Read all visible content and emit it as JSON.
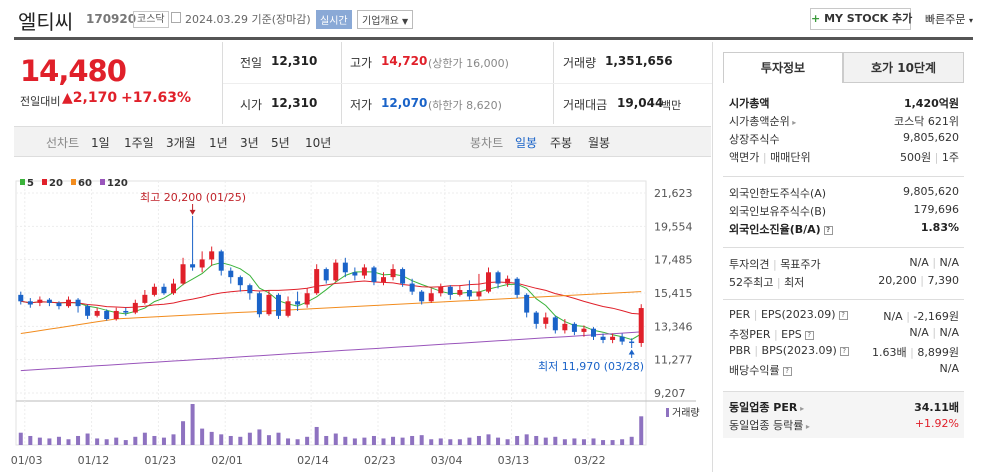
{
  "header": {
    "name": "엘티씨",
    "code": "170920",
    "market": "코스닥",
    "date": "2024.03.29 기준(장마감)",
    "realtime": "실시간",
    "overview": "기업개요",
    "mystock": "MY STOCK 추가",
    "quick": "빠른주문"
  },
  "price": {
    "current": "14,480",
    "prev_label": "전일대비",
    "change": "2,170",
    "rate": "+17.63%"
  },
  "summary": {
    "prev_label": "전일",
    "prev": "12,310",
    "open_label": "시가",
    "open": "12,310",
    "high_label": "고가",
    "high": "14,720",
    "high_limit": "(상한가 16,000)",
    "low_label": "저가",
    "low": "12,070",
    "low_limit": "(하한가 8,620)",
    "volume_label": "거래량",
    "volume": "1,351,656",
    "amount_label": "거래대금",
    "amount": "19,044",
    "amount_unit": "백만"
  },
  "tabs": {
    "line_label": "선차트",
    "periods": [
      "1일",
      "1주일",
      "3개월",
      "1년",
      "3년",
      "5년",
      "10년"
    ],
    "candle_label": "봉차트",
    "candles": [
      "일봉",
      "주봉",
      "월봉"
    ]
  },
  "chart_data": {
    "type": "candlestick",
    "legend": [
      "5",
      "20",
      "60",
      "120"
    ],
    "legend_colors": [
      "#3bb33b",
      "#e0202a",
      "#f28c1e",
      "#9955bb"
    ],
    "y_ticks": [
      "21,623",
      "19,554",
      "17,485",
      "15,415",
      "13,346",
      "11,277",
      "9,207"
    ],
    "ylim": [
      9207,
      21623
    ],
    "x_ticks": [
      "01/03",
      "01/12",
      "01/23",
      "02/01",
      "02/14",
      "02/23",
      "03/04",
      "03/13",
      "03/22"
    ],
    "high_annotation": "최고 20,200 (01/25)",
    "low_annotation": "최저 11,970 (03/28)",
    "volume_label": "거래량",
    "candles": [
      [
        15300,
        14900,
        15500,
        14700
      ],
      [
        14900,
        14700,
        15100,
        14500
      ],
      [
        14800,
        15000,
        15200,
        14600
      ],
      [
        15000,
        14800,
        15100,
        14600
      ],
      [
        14800,
        14600,
        14900,
        14400
      ],
      [
        14600,
        15000,
        15200,
        14500
      ],
      [
        15000,
        14600,
        15100,
        14200
      ],
      [
        14600,
        14000,
        14700,
        13800
      ],
      [
        14000,
        14300,
        14500,
        13900
      ],
      [
        14300,
        13800,
        14400,
        13700
      ],
      [
        13800,
        14300,
        14500,
        13700
      ],
      [
        14300,
        14200,
        14500,
        14000
      ],
      [
        14200,
        14800,
        15000,
        14100
      ],
      [
        14800,
        15300,
        15600,
        14700
      ],
      [
        15300,
        15800,
        16000,
        15200
      ],
      [
        15800,
        15400,
        16000,
        15300
      ],
      [
        15400,
        16000,
        16300,
        15300
      ],
      [
        16000,
        17200,
        17600,
        15900
      ],
      [
        17200,
        17000,
        20200,
        16800
      ],
      [
        17000,
        17500,
        18000,
        16700
      ],
      [
        17500,
        18000,
        18300,
        17100
      ],
      [
        18000,
        16800,
        18100,
        16500
      ],
      [
        16800,
        16400,
        17000,
        16000
      ],
      [
        16400,
        15900,
        16500,
        15500
      ],
      [
        15900,
        15400,
        16000,
        15000
      ],
      [
        15400,
        14100,
        15500,
        13900
      ],
      [
        14100,
        15300,
        15600,
        14000
      ],
      [
        15300,
        14000,
        15400,
        13800
      ],
      [
        14000,
        14900,
        15200,
        13900
      ],
      [
        14900,
        14700,
        15500,
        14300
      ],
      [
        14700,
        15400,
        15700,
        14500
      ],
      [
        15400,
        16900,
        17200,
        15300
      ],
      [
        16900,
        16200,
        17000,
        16000
      ],
      [
        16200,
        17300,
        17500,
        16100
      ],
      [
        17300,
        16700,
        17600,
        16400
      ],
      [
        16700,
        16500,
        17000,
        16200
      ],
      [
        16500,
        17000,
        17200,
        16300
      ],
      [
        17000,
        16100,
        17100,
        15900
      ],
      [
        16100,
        16400,
        16700,
        15900
      ],
      [
        16400,
        16900,
        17200,
        16200
      ],
      [
        16900,
        16000,
        17000,
        15800
      ],
      [
        16000,
        15500,
        16300,
        15300
      ],
      [
        15500,
        14900,
        15600,
        14700
      ],
      [
        14900,
        15400,
        15700,
        14800
      ],
      [
        15400,
        15800,
        16000,
        15200
      ],
      [
        15800,
        15300,
        15900,
        15000
      ],
      [
        15300,
        15600,
        15900,
        15200
      ],
      [
        15600,
        15200,
        16200,
        15000
      ],
      [
        15200,
        15500,
        16600,
        15000
      ],
      [
        15500,
        16700,
        17000,
        15400
      ],
      [
        16700,
        16000,
        16800,
        15700
      ],
      [
        16000,
        16300,
        16500,
        15800
      ],
      [
        16300,
        15300,
        16400,
        15100
      ],
      [
        15300,
        14200,
        15400,
        13900
      ],
      [
        14200,
        13500,
        14300,
        13200
      ],
      [
        13500,
        13900,
        14200,
        13200
      ],
      [
        13900,
        13100,
        14000,
        12900
      ],
      [
        13100,
        13500,
        13800,
        12900
      ],
      [
        13500,
        13000,
        13600,
        12800
      ],
      [
        13000,
        13200,
        13400,
        12700
      ],
      [
        13200,
        12700,
        13300,
        12500
      ],
      [
        12700,
        12500,
        12900,
        12300
      ],
      [
        12500,
        12700,
        12900,
        12300
      ],
      [
        12700,
        12400,
        12900,
        12200
      ],
      [
        12400,
        12310,
        12600,
        12000
      ],
      [
        12310,
        14480,
        14720,
        12070
      ]
    ],
    "volumes": [
      30,
      22,
      18,
      16,
      20,
      14,
      22,
      28,
      16,
      14,
      18,
      12,
      20,
      30,
      22,
      18,
      26,
      58,
      100,
      40,
      32,
      26,
      22,
      20,
      30,
      38,
      24,
      30,
      16,
      14,
      20,
      44,
      22,
      28,
      20,
      16,
      18,
      22,
      16,
      20,
      18,
      22,
      24,
      14,
      16,
      14,
      14,
      18,
      22,
      26,
      18,
      14,
      22,
      26,
      22,
      18,
      20,
      14,
      16,
      14,
      16,
      12,
      12,
      14,
      20,
      70
    ]
  },
  "panel": {
    "tab1": "투자정보",
    "tab2": "호가 10단계",
    "rows1": [
      {
        "k": "시가총액",
        "v": "1,420억원",
        "bold": true
      },
      {
        "k": "시가총액순위",
        "v": "코스닥 621위",
        "arrow": true
      },
      {
        "k": "상장주식수",
        "v": "9,805,620"
      },
      {
        "k": "액면가",
        "k2": "매매단위",
        "v": "500원",
        "v2": "1주"
      }
    ],
    "rows2": [
      {
        "k": "외국인한도주식수(A)",
        "v": "9,805,620"
      },
      {
        "k": "외국인보유주식수(B)",
        "v": "179,696"
      },
      {
        "k": "외국인소진율(B/A)",
        "v": "1.83%",
        "bold": true,
        "info": true
      }
    ],
    "rows3": [
      {
        "k": "투자의견",
        "k2": "목표주가",
        "v": "N/A",
        "v2": "N/A"
      },
      {
        "k": "52주최고",
        "k2": "최저",
        "v": "20,200",
        "v2": "7,390"
      }
    ],
    "rows4": [
      {
        "k": "PER",
        "k2": "EPS(2023.09)",
        "v": "N/A",
        "v2": "-2,169원"
      },
      {
        "k": "추정PER",
        "k2": "EPS",
        "v": "N/A",
        "v2": "N/A"
      },
      {
        "k": "PBR",
        "k2": "BPS(2023.09)",
        "v": "1.63배",
        "v2": "8,899원"
      },
      {
        "k": "배당수익률",
        "v": "N/A"
      }
    ],
    "rows5": [
      {
        "k": "동일업종 PER",
        "v": "34.11배",
        "bold": true,
        "arrow": true
      },
      {
        "k": "동일업종 등락률",
        "v": "+1.92%",
        "red": true,
        "arrow": true
      }
    ]
  }
}
